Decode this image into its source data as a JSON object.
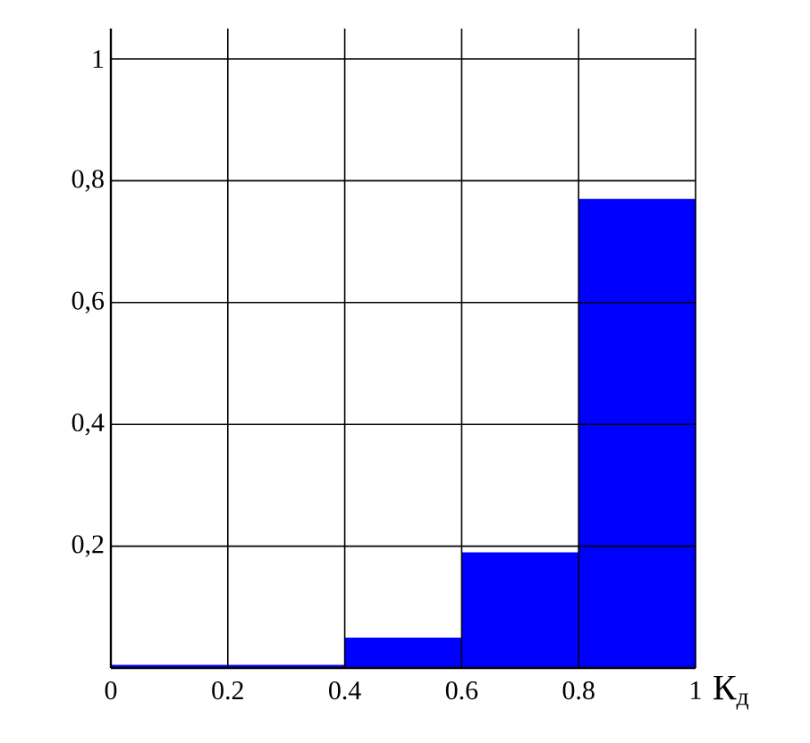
{
  "chart_data": {
    "type": "histogram",
    "xlabel": "К$_{д}$",
    "bins": [
      0,
      0.2,
      0.4,
      0.6,
      0.8,
      1
    ],
    "values": [
      0.005,
      0.005,
      0.05,
      0.19,
      0.77
    ],
    "color": "#0000ff",
    "xlim": [
      0,
      1
    ],
    "ylim": [
      0,
      1.05
    ],
    "xticks": [
      0,
      {
        "value": 0.2,
        "label": "0.2"
      },
      {
        "value": 0.4,
        "label": "0.4"
      },
      {
        "value": 0.6,
        "label": "0.6"
      },
      {
        "value": 0.8,
        "label": "0.8"
      },
      1
    ],
    "yticks": [
      {
        "value": 0.2,
        "label": "0,2"
      },
      {
        "value": 0.4,
        "label": "0,4"
      },
      {
        "value": 0.6,
        "label": "0,6"
      },
      {
        "value": 0.8,
        "label": "0,8"
      },
      1
    ],
    "grid": true
  }
}
